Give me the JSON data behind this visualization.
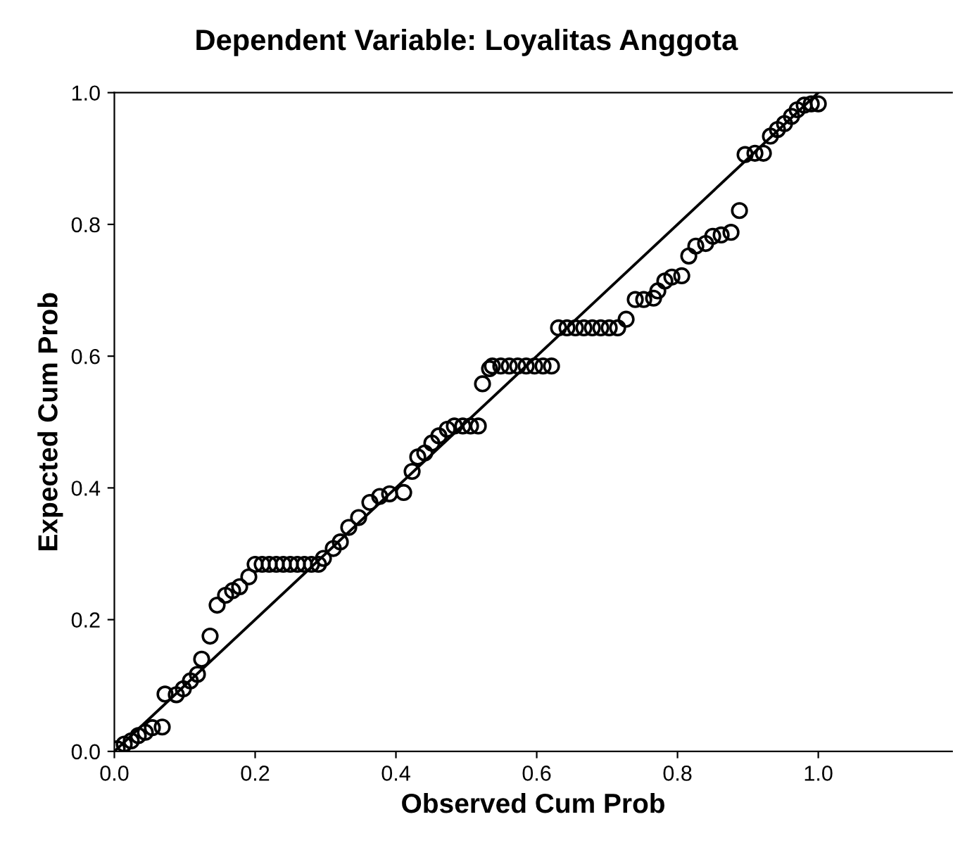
{
  "chart_data": {
    "type": "scatter",
    "title": "Dependent Variable: Loyalitas Anggota",
    "xlabel": "Observed Cum Prob",
    "ylabel": "Expected Cum Prob",
    "xlim": [
      0,
      1.19
    ],
    "ylim": [
      0,
      1.0
    ],
    "xticks": [
      {
        "value": 0,
        "label": "0.0"
      },
      0.2,
      0.4,
      0.6,
      0.8,
      {
        "value": 1.0,
        "label": "1.0"
      }
    ],
    "yticks": [
      {
        "value": 0,
        "label": "0.0"
      },
      0.2,
      0.4,
      0.6,
      0.8,
      {
        "value": 1.0,
        "label": "1.0"
      }
    ],
    "grid": false,
    "legend": false,
    "marker": "circle",
    "series": [
      {
        "color": "#000000",
        "x": [
          0.004,
          0.014,
          0.024,
          0.034,
          0.044,
          0.054,
          0.068,
          0.072,
          0.088,
          0.098,
          0.108,
          0.118,
          0.124,
          0.136,
          0.146,
          0.158,
          0.168,
          0.178,
          0.191,
          0.2,
          0.21,
          0.22,
          0.23,
          0.24,
          0.25,
          0.26,
          0.27,
          0.28,
          0.29,
          0.297,
          0.311,
          0.321,
          0.333,
          0.347,
          0.363,
          0.377,
          0.391,
          0.411,
          0.423,
          0.431,
          0.441,
          0.451,
          0.461,
          0.473,
          0.483,
          0.495,
          0.506,
          0.517,
          0.523,
          0.533,
          0.537,
          0.549,
          0.561,
          0.573,
          0.585,
          0.597,
          0.609,
          0.621,
          0.631,
          0.643,
          0.655,
          0.667,
          0.679,
          0.691,
          0.703,
          0.715,
          0.727,
          0.74,
          0.752,
          0.766,
          0.772,
          0.782,
          0.792,
          0.806,
          0.816,
          0.826,
          0.84,
          0.85,
          0.862,
          0.876,
          0.888,
          0.896,
          0.91,
          0.922,
          0.932,
          0.942,
          0.952,
          0.962,
          0.97,
          0.98,
          0.99,
          1.0
        ],
        "values": [
          0.004,
          0.011,
          0.016,
          0.024,
          0.029,
          0.036,
          0.037,
          0.087,
          0.086,
          0.095,
          0.107,
          0.117,
          0.14,
          0.175,
          0.222,
          0.237,
          0.244,
          0.25,
          0.265,
          0.284,
          0.284,
          0.284,
          0.284,
          0.284,
          0.284,
          0.284,
          0.284,
          0.284,
          0.284,
          0.293,
          0.308,
          0.318,
          0.34,
          0.355,
          0.378,
          0.387,
          0.391,
          0.393,
          0.425,
          0.447,
          0.453,
          0.468,
          0.479,
          0.489,
          0.494,
          0.494,
          0.494,
          0.494,
          0.558,
          0.581,
          0.585,
          0.585,
          0.585,
          0.585,
          0.585,
          0.585,
          0.585,
          0.585,
          0.643,
          0.643,
          0.643,
          0.643,
          0.643,
          0.643,
          0.643,
          0.643,
          0.656,
          0.686,
          0.686,
          0.688,
          0.699,
          0.714,
          0.72,
          0.722,
          0.752,
          0.767,
          0.771,
          0.782,
          0.784,
          0.788,
          0.821,
          0.906,
          0.908,
          0.908,
          0.934,
          0.944,
          0.953,
          0.964,
          0.974,
          0.981,
          0.983,
          0.983
        ]
      },
      {
        "type": "line",
        "color": "#000000",
        "x": [
          0,
          1
        ],
        "values": [
          0,
          1
        ],
        "marker": "none",
        "line_style": "solid"
      }
    ]
  }
}
